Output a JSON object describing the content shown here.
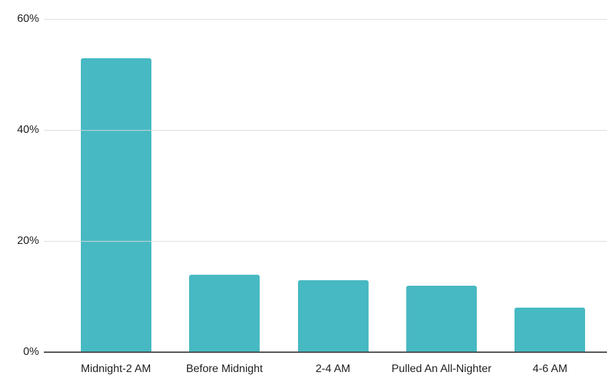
{
  "chart_data": {
    "type": "bar",
    "categories": [
      "Midnight-2 AM",
      "Before Midnight",
      "2-4 AM",
      "Pulled An All-Nighter",
      "4-6 AM"
    ],
    "values": [
      53,
      14,
      13,
      12,
      8
    ],
    "value_unit": "%",
    "yticks": [
      {
        "value": 60,
        "label": "60%"
      },
      {
        "value": 40,
        "label": "40%"
      },
      {
        "value": 20,
        "label": "20%"
      },
      {
        "value": 0,
        "label": "0%"
      }
    ],
    "ylim": [
      0,
      60
    ],
    "grid": "horizontal",
    "legend_position": "none",
    "colors": {
      "bar": "#47b9c3",
      "gridline": "#d9d9d9",
      "axis_line": "#4d4d4d",
      "text": "#1f1f1f",
      "background": "#ffffff"
    }
  }
}
